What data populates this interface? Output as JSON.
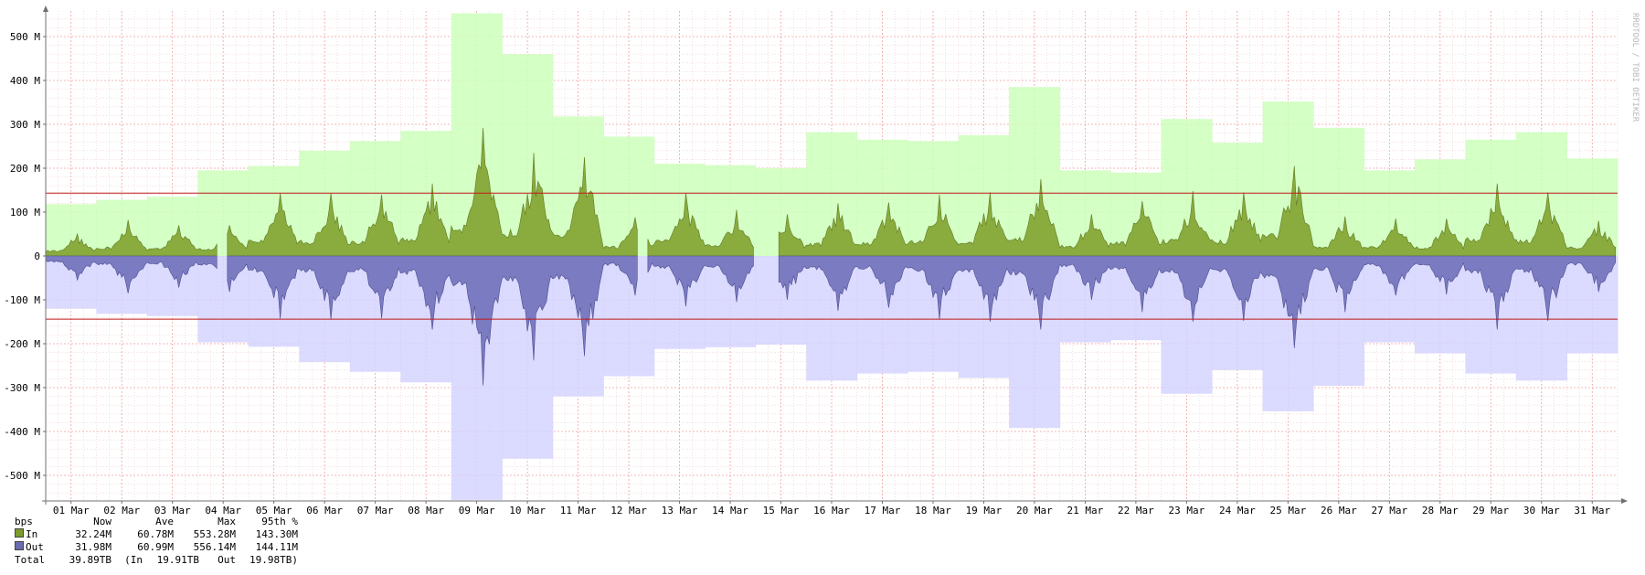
{
  "chart_data": {
    "type": "area",
    "unit_label": "bps",
    "watermark": "RRDTOOL / TOBI OETIKER",
    "ylim": [
      -560,
      560
    ],
    "y_unit": "M",
    "y_ticks": [
      {
        "value": 500,
        "label": "500 M"
      },
      {
        "value": 400,
        "label": "400 M"
      },
      {
        "value": 300,
        "label": "300 M"
      },
      {
        "value": 200,
        "label": "200 M"
      },
      {
        "value": 100,
        "label": "100 M"
      },
      {
        "value": 0,
        "label": "0"
      },
      {
        "value": -100,
        "label": "-100 M"
      },
      {
        "value": -200,
        "label": "-200 M"
      },
      {
        "value": -300,
        "label": "-300 M"
      },
      {
        "value": -400,
        "label": "-400 M"
      },
      {
        "value": -500,
        "label": "-500 M"
      }
    ],
    "x_ticks": [
      "01 Mar",
      "02 Mar",
      "03 Mar",
      "04 Mar",
      "05 Mar",
      "06 Mar",
      "07 Mar",
      "08 Mar",
      "09 Mar",
      "10 Mar",
      "11 Mar",
      "12 Mar",
      "13 Mar",
      "14 Mar",
      "15 Mar",
      "16 Mar",
      "17 Mar",
      "18 Mar",
      "19 Mar",
      "20 Mar",
      "21 Mar",
      "22 Mar",
      "23 Mar",
      "24 Mar",
      "25 Mar",
      "26 Mar",
      "27 Mar",
      "28 Mar",
      "29 Mar",
      "30 Mar",
      "31 Mar"
    ],
    "percentile_95th": {
      "in": 143.3,
      "out": 144.11
    },
    "daily_max": {
      "in": [
        118,
        128,
        135,
        195,
        205,
        240,
        262,
        285,
        553,
        460,
        318,
        272,
        210,
        207,
        200,
        282,
        265,
        262,
        275,
        385,
        195,
        190,
        312,
        258,
        352,
        292,
        195,
        220,
        265,
        282,
        222
      ],
      "out": [
        120,
        132,
        137,
        197,
        207,
        242,
        264,
        288,
        556,
        462,
        320,
        274,
        212,
        208,
        202,
        284,
        268,
        264,
        278,
        392,
        197,
        192,
        314,
        260,
        354,
        296,
        197,
        222,
        268,
        284,
        222
      ]
    },
    "daily_peak": {
      "in": [
        50,
        82,
        70,
        70,
        143,
        143,
        140,
        165,
        292,
        235,
        225,
        88,
        143,
        105,
        95,
        120,
        122,
        140,
        145,
        175,
        95,
        125,
        148,
        145,
        205,
        90,
        85,
        85,
        165,
        145,
        80
      ],
      "out": [
        55,
        85,
        72,
        82,
        143,
        145,
        142,
        168,
        295,
        238,
        228,
        90,
        115,
        105,
        100,
        125,
        118,
        145,
        150,
        168,
        100,
        128,
        150,
        148,
        210,
        128,
        90,
        88,
        168,
        148,
        82
      ]
    },
    "gaps_days": [
      [
        3.4,
        3.55
      ],
      [
        11.7,
        11.85
      ],
      [
        14.0,
        14.45
      ]
    ],
    "series": [
      {
        "name": "In",
        "color": "#8aab3e",
        "now": "32.24M",
        "ave": "60.78M",
        "max": "553.28M",
        "p95": "143.30M"
      },
      {
        "name": "Out",
        "color": "#7b7bc2",
        "now": "31.98M",
        "ave": "60.99M",
        "max": "556.14M",
        "p95": "144.11M"
      }
    ],
    "legend_headers": {
      "now": "Now",
      "ave": "Ave",
      "max": "Max",
      "p95": "95th %"
    },
    "total": {
      "label": "Total",
      "value": "39.89TB",
      "in_label": "(In",
      "in_value": "19.91TB",
      "out_label": "Out",
      "out_value": "19.98TB)"
    }
  }
}
